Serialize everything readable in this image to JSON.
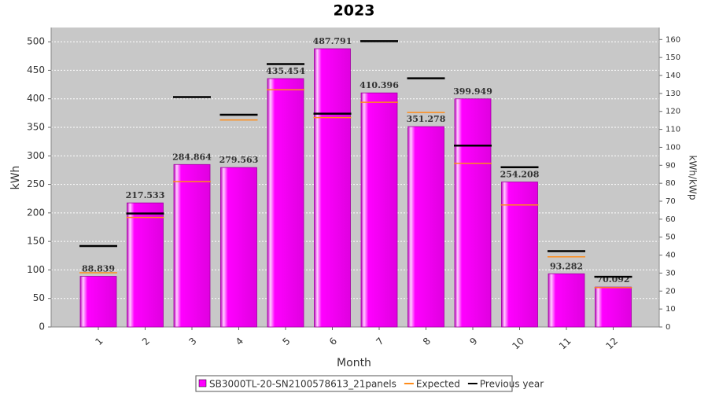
{
  "chart_data": {
    "type": "bar",
    "title": "2023",
    "x_label": "Month",
    "y_label": "kWh",
    "y2_label": "kWh/kWp",
    "categories": [
      "1",
      "2",
      "3",
      "4",
      "5",
      "6",
      "7",
      "8",
      "9",
      "10",
      "11",
      "12"
    ],
    "series": [
      {
        "name": "SB3000TL-20-SN2100578613_21panels",
        "color": "#ff00ff",
        "kind": "bar",
        "values": [
          88.839,
          217.533,
          284.864,
          279.563,
          435.454,
          487.791,
          410.396,
          351.278,
          399.949,
          254.208,
          93.282,
          70.092
        ]
      },
      {
        "name": "Expected",
        "color": "#ff8c1a",
        "kind": "marker",
        "values": [
          95,
          192,
          255,
          363,
          416,
          367,
          394,
          376,
          287,
          214,
          123,
          69
        ]
      },
      {
        "name": "Previous year",
        "color": "#000000",
        "kind": "marker",
        "values": [
          142,
          199,
          403,
          372,
          461,
          374,
          501,
          436,
          318,
          280,
          133,
          88
        ]
      }
    ],
    "ylim": [
      0,
      525
    ],
    "yticks": [
      0,
      50,
      100,
      150,
      200,
      250,
      300,
      350,
      400,
      450,
      500
    ],
    "y2lim": [
      0,
      166.7
    ],
    "y2ticks": [
      0,
      10,
      20,
      30,
      40,
      50,
      60,
      70,
      80,
      90,
      100,
      110,
      120,
      130,
      140,
      150,
      160
    ],
    "grid": true
  }
}
